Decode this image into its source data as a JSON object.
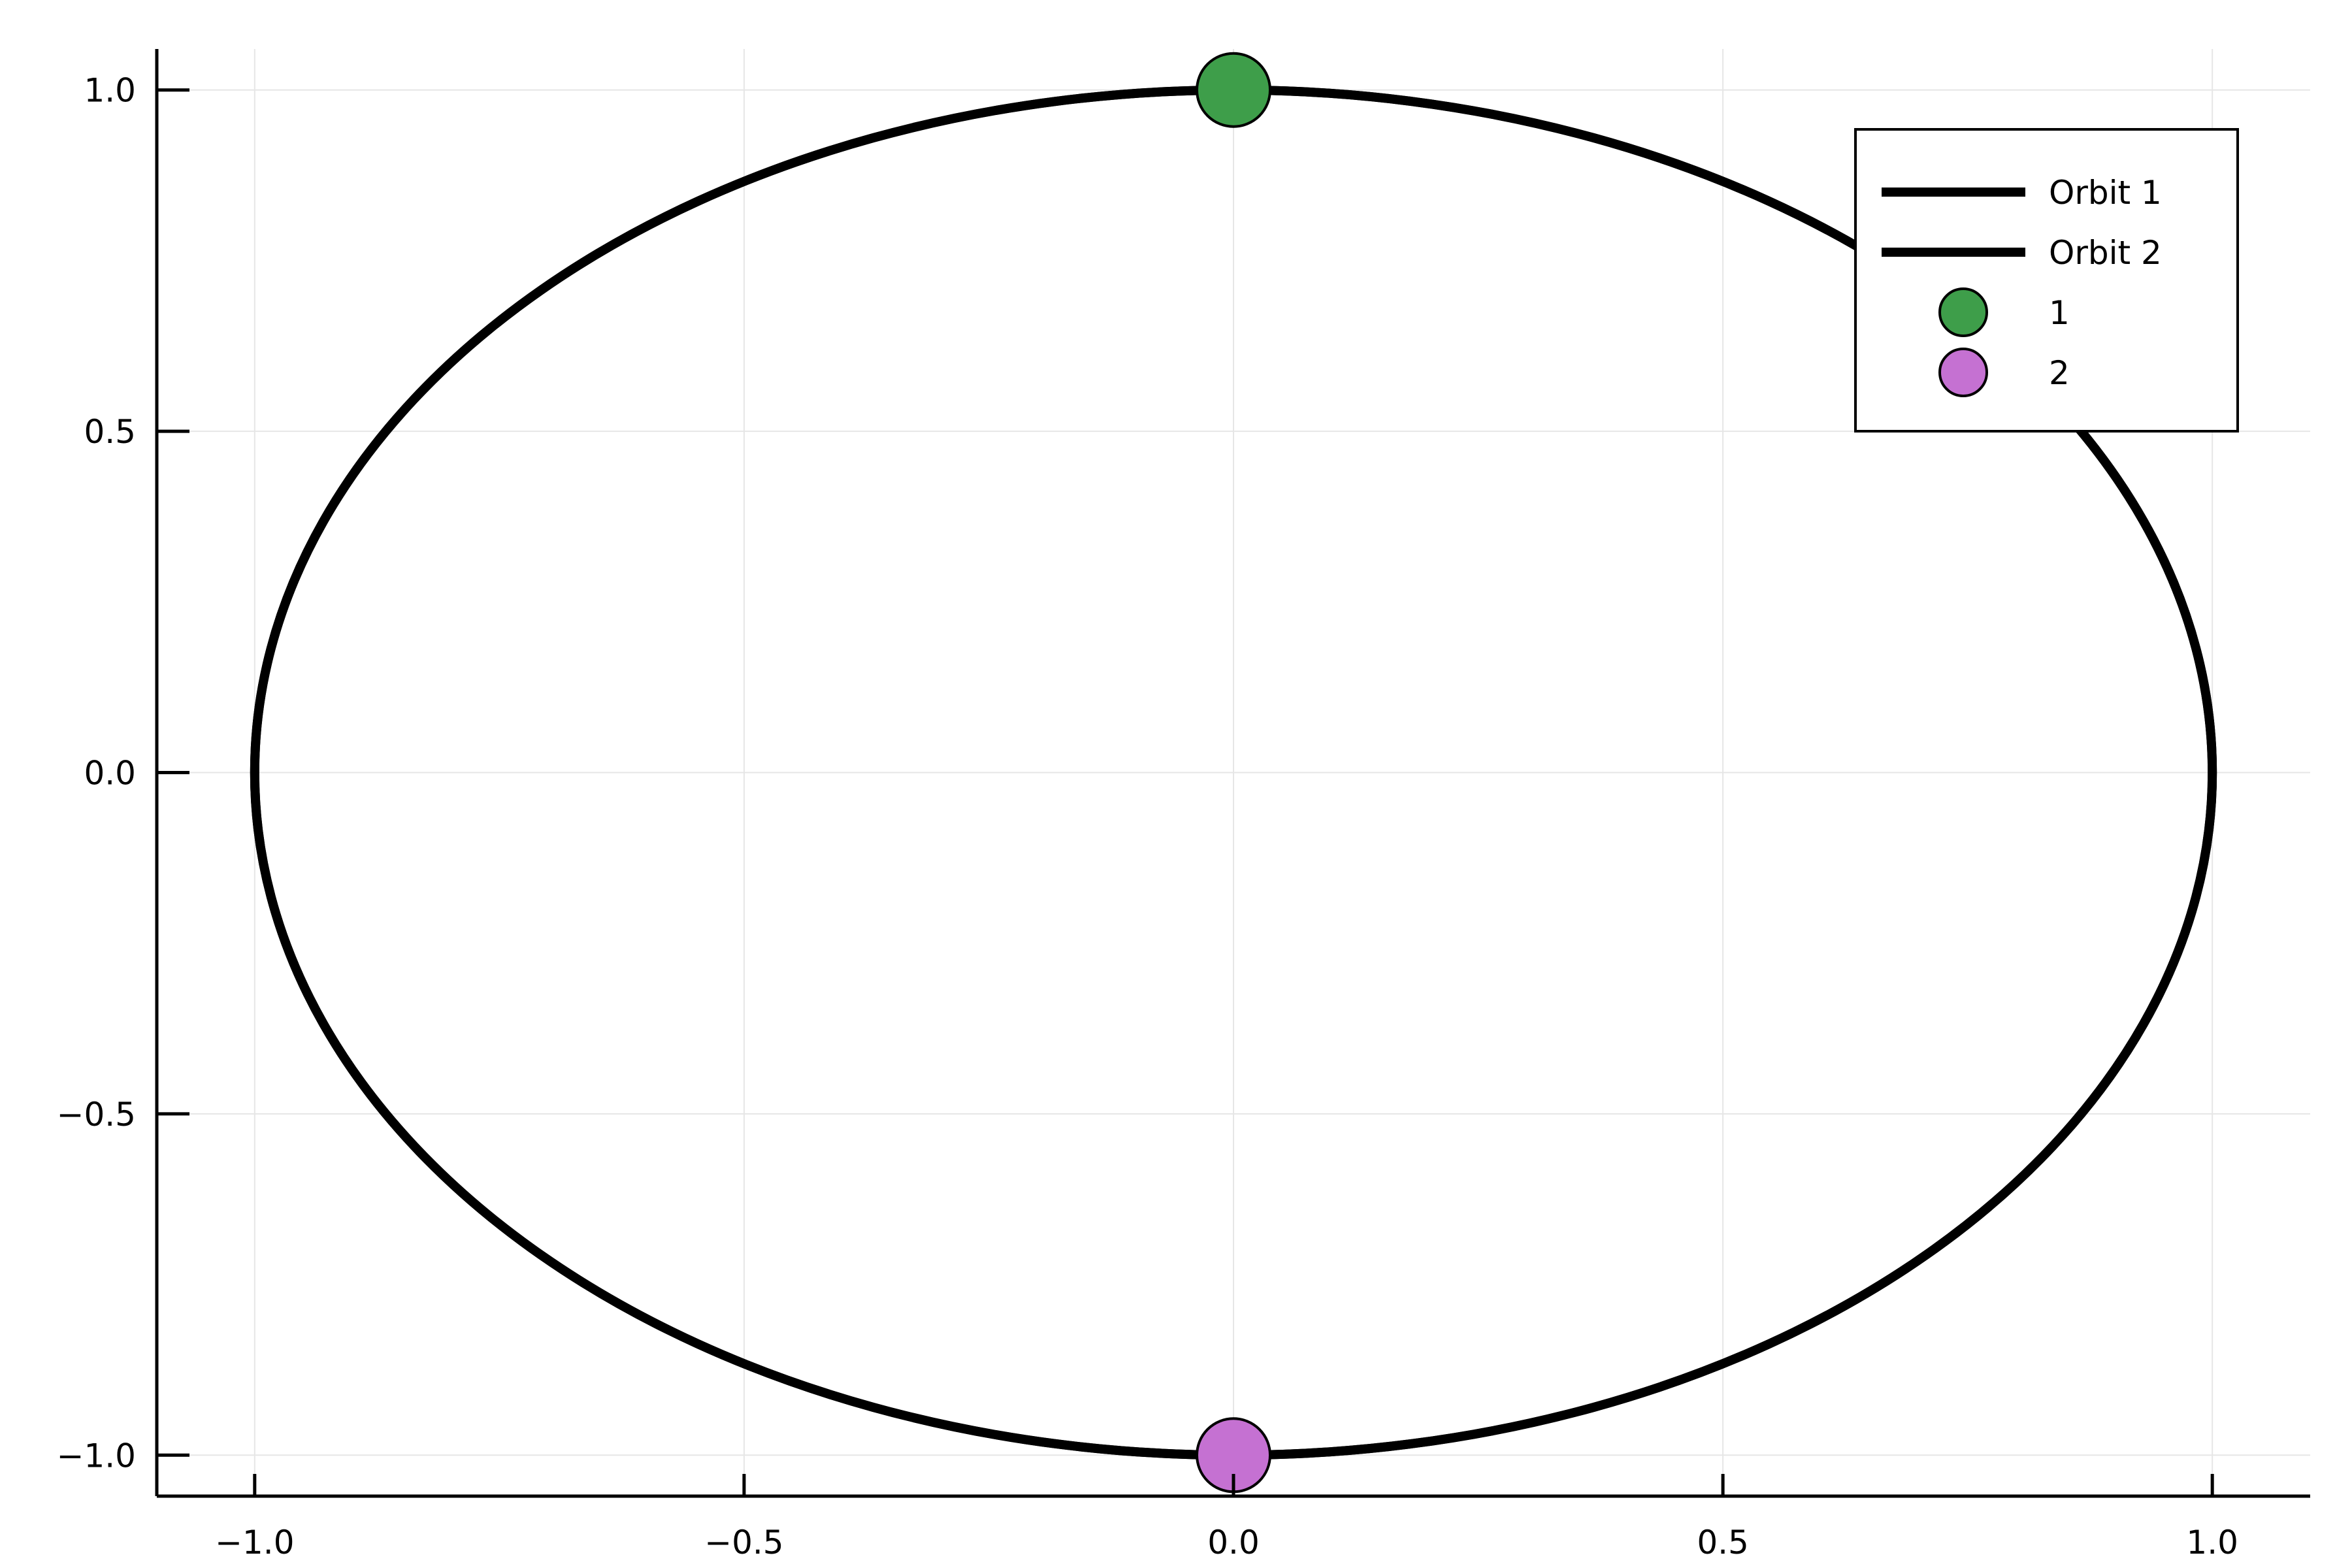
{
  "chart_data": {
    "type": "line",
    "title": "",
    "xlabel": "",
    "ylabel": "",
    "xlim": [
      -1.1,
      1.1
    ],
    "ylim": [
      -1.06,
      1.06
    ],
    "xticks": [
      -1.0,
      -0.5,
      0.0,
      0.5,
      1.0
    ],
    "xtick_labels": [
      "−1.0",
      "−0.5",
      "0.0",
      "0.5",
      "1.0"
    ],
    "yticks": [
      -1.0,
      -0.5,
      0.0,
      0.5,
      1.0
    ],
    "ytick_labels": [
      "−1.0",
      "−0.5",
      "0.0",
      "0.5",
      "1.0"
    ],
    "grid": true,
    "legend_position": "top-right",
    "series": [
      {
        "name": "Orbit 1",
        "kind": "line",
        "color": "#000000",
        "shape": "ellipse",
        "center": [
          0,
          0
        ],
        "radius_x": 1.0,
        "radius_y": 1.0
      },
      {
        "name": "Orbit 2",
        "kind": "line",
        "color": "#000000",
        "shape": "ellipse",
        "center": [
          0,
          0
        ],
        "radius_x": 1.0,
        "radius_y": 1.0
      },
      {
        "name": "1",
        "kind": "scatter",
        "color": "#3e9e4a",
        "x": [
          0.0
        ],
        "y": [
          1.0
        ]
      },
      {
        "name": "2",
        "kind": "scatter",
        "color": "#c571d2",
        "x": [
          0.0
        ],
        "y": [
          -1.0
        ]
      }
    ]
  }
}
